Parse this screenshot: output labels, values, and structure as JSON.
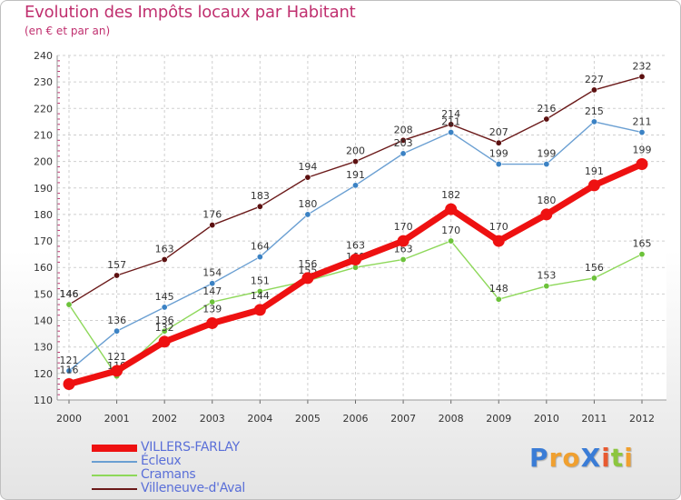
{
  "title": "Evolution des Impôts locaux par Habitant",
  "subtitle": "(en € et par an)",
  "brand": {
    "text": "ProXiti",
    "letters": [
      "P",
      "r",
      "o",
      "X",
      "i",
      "t",
      "i"
    ],
    "colors": [
      "#3a7cd6",
      "#f0a030",
      "#f0a030",
      "#3a7cd6",
      "#e85a30",
      "#8cc63f",
      "#f0a030"
    ]
  },
  "chart_data": {
    "type": "line",
    "title": "Evolution des Impôts locaux par Habitant",
    "subtitle": "(en € et par an)",
    "xlabel": "",
    "ylabel": "",
    "categories": [
      "2000",
      "2001",
      "2002",
      "2003",
      "2004",
      "2005",
      "2006",
      "2007",
      "2008",
      "2009",
      "2010",
      "2011",
      "2012"
    ],
    "ylim": [
      110,
      240
    ],
    "yticks": [
      110,
      120,
      130,
      140,
      150,
      160,
      170,
      180,
      190,
      200,
      210,
      220,
      230,
      240
    ],
    "grid": true,
    "legend_position": "bottom-left",
    "series": [
      {
        "name": "Villeneuve-d'Aval",
        "color": "#6b1a1a",
        "dot": "#5c1010",
        "thick": false,
        "values": [
          146,
          157,
          163,
          176,
          183,
          194,
          200,
          208,
          214,
          207,
          216,
          227,
          232
        ],
        "labels": [
          "146",
          "157",
          "163",
          "176",
          "183",
          "194",
          "200",
          "208",
          "214",
          "207",
          "216",
          "227",
          "232"
        ]
      },
      {
        "name": "Écleux",
        "color": "#6a9fd2",
        "dot": "#3b82c4",
        "thick": false,
        "values": [
          121,
          136,
          145,
          154,
          164,
          180,
          191,
          203,
          211,
          199,
          199,
          215,
          211
        ],
        "labels": [
          "121",
          "136",
          "145",
          "154",
          "164",
          "180",
          "191",
          "203",
          "211",
          "199",
          "199",
          "215",
          "211"
        ]
      },
      {
        "name": "Cramans",
        "color": "#8ed85a",
        "dot": "#6cc23a",
        "thick": false,
        "values": [
          146,
          119,
          136,
          147,
          151,
          155,
          160,
          163,
          170,
          148,
          153,
          156,
          165
        ],
        "labels": [
          "146",
          "119",
          "136",
          "147",
          "151",
          "155",
          "160",
          "163",
          "170",
          "148",
          "153",
          "156",
          "165"
        ]
      },
      {
        "name": "VILLERS-FARLAY",
        "color": "#ee1111",
        "dot": "#ee1111",
        "thick": true,
        "values": [
          116,
          121,
          132,
          139,
          144,
          156,
          163,
          170,
          182,
          170,
          180,
          191,
          199
        ],
        "labels": [
          "116",
          "121",
          "132",
          "139",
          "144",
          "156",
          "163",
          "170",
          "182",
          "170",
          "180",
          "191",
          "199"
        ]
      }
    ],
    "legend": [
      "VILLERS-FARLAY",
      "Écleux",
      "Cramans",
      "Villeneuve-d'Aval"
    ]
  }
}
